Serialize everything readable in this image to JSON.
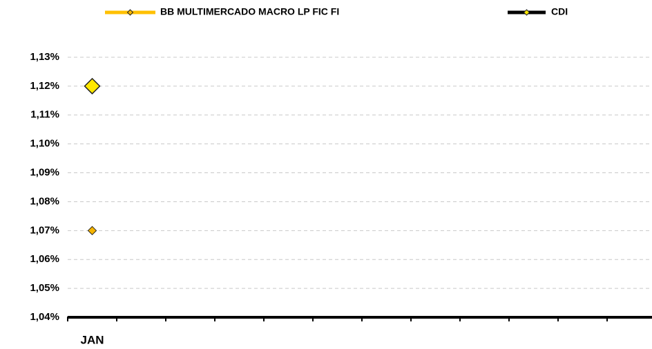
{
  "chart_data": {
    "type": "line",
    "categories": [
      "JAN",
      null,
      null,
      null,
      null,
      null,
      null,
      null,
      null,
      null,
      null,
      null
    ],
    "series": [
      {
        "name": "BB MULTIMERCADO MACRO LP FIC FI",
        "color": "#FFC000",
        "marker_color": "#F5B400",
        "values": [
          1.07,
          null,
          null,
          null,
          null,
          null,
          null,
          null,
          null,
          null,
          null,
          null
        ]
      },
      {
        "name": "CDI",
        "color": "#000000",
        "marker_color": "#FFE800",
        "values": [
          1.12,
          null,
          null,
          null,
          null,
          null,
          null,
          null,
          null,
          null,
          null,
          null
        ]
      }
    ],
    "ylim": [
      1.04,
      1.13
    ],
    "yticks": [
      {
        "value": 1.04,
        "label": "1,04%"
      },
      {
        "value": 1.05,
        "label": "1,05%"
      },
      {
        "value": 1.06,
        "label": "1,06%"
      },
      {
        "value": 1.07,
        "label": "1,07%"
      },
      {
        "value": 1.08,
        "label": "1,08%"
      },
      {
        "value": 1.09,
        "label": "1,09%"
      },
      {
        "value": 1.1,
        "label": "1,10%"
      },
      {
        "value": 1.11,
        "label": "1,11%"
      },
      {
        "value": 1.12,
        "label": "1,12%"
      },
      {
        "value": 1.13,
        "label": "1,13%"
      }
    ],
    "grid": true,
    "legend": "top"
  }
}
